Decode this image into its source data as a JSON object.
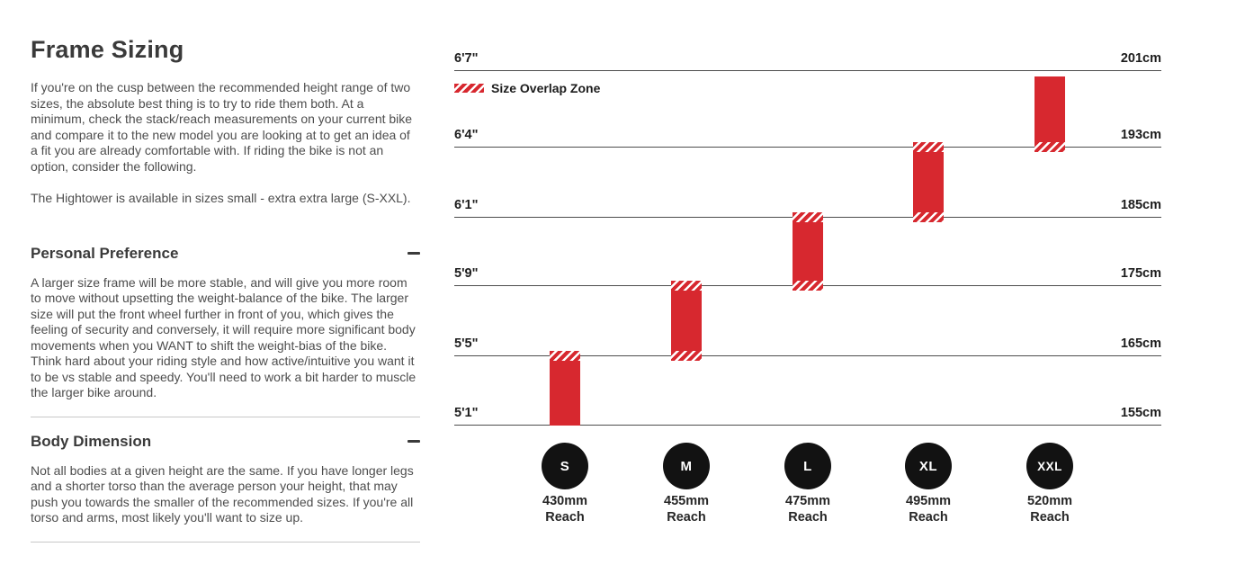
{
  "page": {
    "title": "Frame Sizing",
    "intro_1": "If you're on the cusp between the recommended height range of two sizes, the absolute best thing is to try to ride them both. At a minimum, check the stack/reach measurements on your current bike and compare it to the new model you are looking at to get an idea of a fit you are already comfortable with. If riding the bike is not an option, consider the following.",
    "intro_2": "The Hightower is available in sizes small - extra extra large (S-XXL).",
    "sections": [
      {
        "heading": "Personal Preference",
        "toggle_icon": "minus",
        "body": "A larger size frame will be more stable, and will give you more room to move without upsetting the weight-balance of the bike. The larger size will put the front wheel further in front of you, which gives the feeling of security and conversely, it will require more significant body movements when you WANT to shift the weight-bias of the bike. Think hard about your riding style and how active/intuitive you want it to be vs stable and speedy. You'll need to work a bit harder to muscle the larger bike around."
      },
      {
        "heading": "Body Dimension",
        "toggle_icon": "minus",
        "body": "Not all bodies at a given height are the same. If you have longer legs and a shorter torso than the average person your height, that may push you towards the smaller of the recommended sizes. If you're all torso and arms, most likely you'll want to size up."
      }
    ]
  },
  "chart_data": {
    "type": "range-bar",
    "legend": "Size Overlap Zone",
    "height_rows": [
      {
        "imperial": "6'7\"",
        "metric": "201cm"
      },
      {
        "imperial": "6'4\"",
        "metric": "193cm"
      },
      {
        "imperial": "6'1\"",
        "metric": "185cm"
      },
      {
        "imperial": "5'9\"",
        "metric": "175cm"
      },
      {
        "imperial": "5'5\"",
        "metric": "165cm"
      },
      {
        "imperial": "5'1\"",
        "metric": "155cm"
      }
    ],
    "sizes": [
      {
        "label": "S",
        "reach": "430mm",
        "reach_caption": "Reach",
        "top_row": 4,
        "bottom_row": 5,
        "overlap_top": true,
        "overlap_bottom": false,
        "height_range_imperial": "5'1\"-5'5\"",
        "height_range_metric": "155-165cm"
      },
      {
        "label": "M",
        "reach": "455mm",
        "reach_caption": "Reach",
        "top_row": 3,
        "bottom_row": 4,
        "overlap_top": true,
        "overlap_bottom": true,
        "height_range_imperial": "5'5\"-5'9\"",
        "height_range_metric": "165-175cm"
      },
      {
        "label": "L",
        "reach": "475mm",
        "reach_caption": "Reach",
        "top_row": 2,
        "bottom_row": 3,
        "overlap_top": true,
        "overlap_bottom": true,
        "height_range_imperial": "5'9\"-6'1\"",
        "height_range_metric": "175-185cm"
      },
      {
        "label": "XL",
        "reach": "495mm",
        "reach_caption": "Reach",
        "top_row": 1,
        "bottom_row": 2,
        "overlap_top": true,
        "overlap_bottom": true,
        "height_range_imperial": "6'1\"-6'4\"",
        "height_range_metric": "185-193cm"
      },
      {
        "label": "XXL",
        "reach": "520mm",
        "reach_caption": "Reach",
        "top_row": 0,
        "bottom_row": 1,
        "overlap_top": false,
        "overlap_bottom": true,
        "height_range_imperial": "6'4\"-6'7\"",
        "height_range_metric": "193-201cm"
      }
    ],
    "colors": {
      "bar": "#d7282f",
      "circle": "#121212",
      "gridline": "#4d4d4d"
    }
  }
}
